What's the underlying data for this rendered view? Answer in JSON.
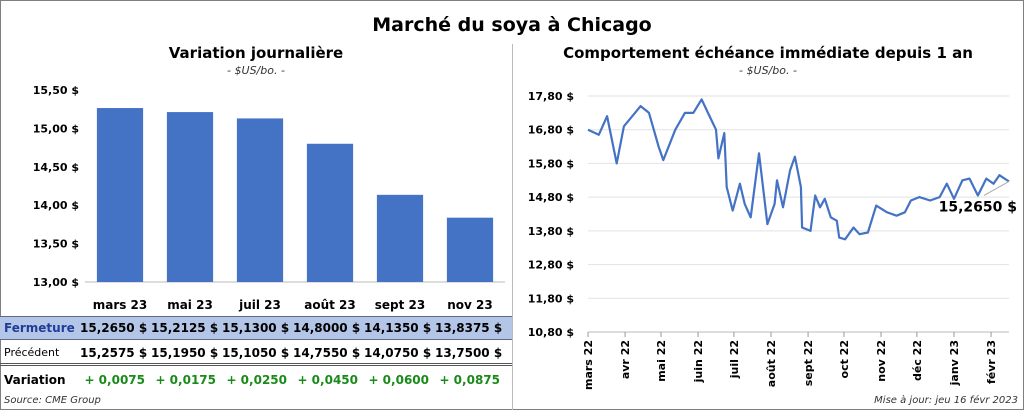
{
  "title": "Marché du soya à Chicago",
  "source": "Source: CME Group",
  "updated": "Mise à jour: jeu 16 févr 2023",
  "table": {
    "row_labels": [
      "Fermeture",
      "Précédent",
      "Variation"
    ],
    "closing": [
      "15,2650  $",
      "15,2125  $",
      "15,1300  $",
      "14,8000  $",
      "14,1350  $",
      "13,8375  $"
    ],
    "previous": [
      "15,2575  $",
      "15,1950  $",
      "15,1050  $",
      "14,7550  $",
      "14,0750  $",
      "13,7500  $"
    ],
    "variation": [
      "+ 0,0075",
      "+ 0,0175",
      "+ 0,0250",
      "+ 0,0450",
      "+ 0,0600",
      "+ 0,0875"
    ]
  },
  "chart_data": [
    {
      "type": "bar",
      "title": "Variation  journalière",
      "subtitle": "- $US/bo. -",
      "categories": [
        "mars 23",
        "mai 23",
        "juil 23",
        "août 23",
        "sept 23",
        "nov 23"
      ],
      "values": [
        15.265,
        15.2125,
        15.13,
        14.8,
        14.135,
        13.8375
      ],
      "ylim": [
        13.0,
        15.5
      ],
      "yticks": [
        "13,00 $",
        "13,50 $",
        "14,00 $",
        "14,50 $",
        "15,00 $",
        "15,50 $"
      ],
      "color": "#4472c4",
      "grid": false
    },
    {
      "type": "line",
      "title": "Comportement  échéance immédiate depuis 1 an",
      "subtitle": "- $US/bo. -",
      "ylim": [
        10.8,
        17.8
      ],
      "yticks": [
        "10,80 $",
        "11,80 $",
        "12,80 $",
        "13,80 $",
        "14,80 $",
        "15,80 $",
        "16,80 $",
        "17,80 $"
      ],
      "xticks": [
        "mars 22",
        "avr 22",
        "mai 22",
        "juin 22",
        "juil 22",
        "août 22",
        "sept 22",
        "oct 22",
        "nov 22",
        "déc 22",
        "janv 23",
        "févr 23"
      ],
      "xlim": [
        "2022-03-01",
        "2023-02-16"
      ],
      "color": "#4472c4",
      "grid": true,
      "last_label": "15,2650 $",
      "points": [
        [
          "2022-03-01",
          16.8
        ],
        [
          "2022-03-10",
          16.65
        ],
        [
          "2022-03-17",
          17.2
        ],
        [
          "2022-03-25",
          15.8
        ],
        [
          "2022-03-31",
          16.9
        ],
        [
          "2022-04-14",
          17.5
        ],
        [
          "2022-04-21",
          17.3
        ],
        [
          "2022-04-29",
          16.3
        ],
        [
          "2022-05-03",
          15.9
        ],
        [
          "2022-05-13",
          16.8
        ],
        [
          "2022-05-21",
          17.3
        ],
        [
          "2022-05-28",
          17.3
        ],
        [
          "2022-06-04",
          17.7
        ],
        [
          "2022-06-12",
          17.1
        ],
        [
          "2022-06-16",
          16.8
        ],
        [
          "2022-06-18",
          15.95
        ],
        [
          "2022-06-23",
          16.7
        ],
        [
          "2022-06-25",
          15.1
        ],
        [
          "2022-06-30",
          14.4
        ],
        [
          "2022-07-06",
          15.2
        ],
        [
          "2022-07-10",
          14.6
        ],
        [
          "2022-07-15",
          14.2
        ],
        [
          "2022-07-22",
          16.1
        ],
        [
          "2022-07-29",
          14.0
        ],
        [
          "2022-08-04",
          14.6
        ],
        [
          "2022-08-06",
          15.3
        ],
        [
          "2022-08-11",
          14.5
        ],
        [
          "2022-08-17",
          15.6
        ],
        [
          "2022-08-21",
          16.0
        ],
        [
          "2022-08-26",
          15.1
        ],
        [
          "2022-08-27",
          13.9
        ],
        [
          "2022-09-03",
          13.8
        ],
        [
          "2022-09-07",
          14.85
        ],
        [
          "2022-09-11",
          14.5
        ],
        [
          "2022-09-15",
          14.75
        ],
        [
          "2022-09-20",
          14.2
        ],
        [
          "2022-09-25",
          14.1
        ],
        [
          "2022-09-27",
          13.6
        ],
        [
          "2022-10-02",
          13.55
        ],
        [
          "2022-10-09",
          13.9
        ],
        [
          "2022-10-14",
          13.7
        ],
        [
          "2022-10-21",
          13.75
        ],
        [
          "2022-10-28",
          14.55
        ],
        [
          "2022-11-06",
          14.35
        ],
        [
          "2022-11-14",
          14.25
        ],
        [
          "2022-11-21",
          14.35
        ],
        [
          "2022-11-26",
          14.7
        ],
        [
          "2022-12-03",
          14.8
        ],
        [
          "2022-12-12",
          14.7
        ],
        [
          "2022-12-20",
          14.8
        ],
        [
          "2022-12-26",
          15.2
        ],
        [
          "2023-01-01",
          14.75
        ],
        [
          "2023-01-08",
          15.3
        ],
        [
          "2023-01-14",
          15.35
        ],
        [
          "2023-01-21",
          14.85
        ],
        [
          "2023-01-28",
          15.35
        ],
        [
          "2023-02-03",
          15.2
        ],
        [
          "2023-02-08",
          15.45
        ],
        [
          "2023-02-16",
          15.265
        ]
      ]
    }
  ]
}
